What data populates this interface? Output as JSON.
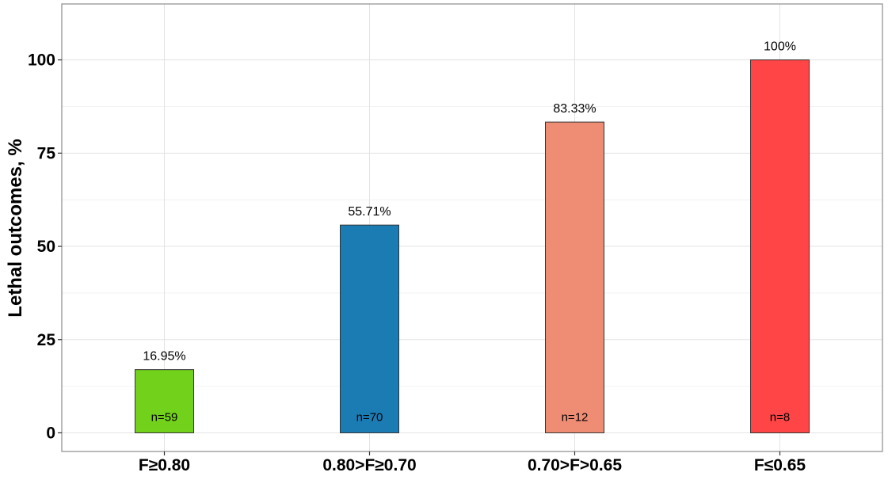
{
  "chart_data": {
    "type": "bar",
    "title": "",
    "xlabel": "",
    "ylabel": "Lethal outcomes, %",
    "ylim": [
      -5,
      115
    ],
    "yticks": [
      0,
      25,
      50,
      75,
      100
    ],
    "grid": true,
    "legend": "none",
    "categories": [
      "F≥0.80",
      "0.80>F≥0.70",
      "0.70>F>0.65",
      "F≤0.65"
    ],
    "values": [
      16.95,
      55.71,
      83.33,
      100
    ],
    "value_labels": [
      "16.95%",
      "55.71%",
      "83.33%",
      "100%"
    ],
    "n_labels": [
      "n=59",
      "n=70",
      "n=12",
      "n=8"
    ],
    "colors": [
      "#72d11a",
      "#1b7cb4",
      "#ef8c74",
      "#ff4545"
    ]
  }
}
